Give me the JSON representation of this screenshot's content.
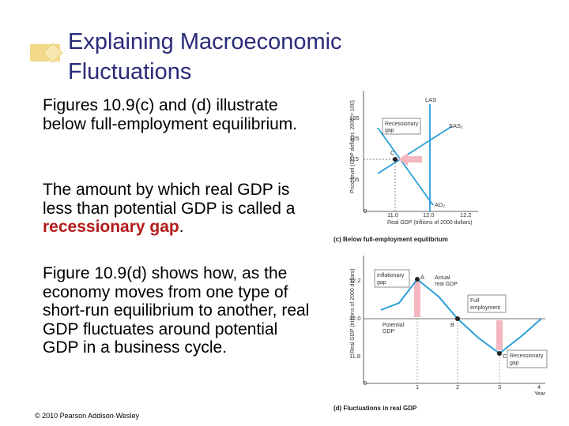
{
  "title": {
    "line1": "Explaining Macroeconomic",
    "line2": "Fluctuations"
  },
  "paragraphs": {
    "p1": "Figures 10.9(c) and (d) illustrate below full-employment equilibrium.",
    "p2_before": "The amount by which real GDP is less than potential GDP is called a ",
    "p2_highlight": "recessionary gap",
    "p2_after": ".",
    "p3": "Figure 10.9(d) shows how, as the economy moves from one type of short-run equilibrium to another, real GDP fluctuates around potential GDP in a business cycle."
  },
  "footer": "© 2010 Pearson Addison-Wesley",
  "figure_c": {
    "caption": "(c) Below full-employment equilibrium",
    "ylabel": "Price level (GDP deflator, 2000 = 100)",
    "xlabel": "Real GDP (trillions of 2000 dollars)",
    "yticks": [
      "135",
      "125",
      "115",
      "105"
    ],
    "xticks": [
      "11.0",
      "12.0",
      "12.2"
    ],
    "origin": "0",
    "curve_las": "LAS",
    "curve_sas": "SAS₂",
    "curve_ad": "AD₂",
    "gap_label_1": "Recessionary",
    "gap_label_2": "gap",
    "point": "C"
  },
  "figure_d": {
    "caption": "(d) Fluctuations in real GDP",
    "ylabel": "Real GDP (trillions of 2000 dollars)",
    "xlabel": "Year",
    "yticks": [
      "12.2",
      "12.0",
      "11.8"
    ],
    "xticks": [
      "1",
      "2",
      "3",
      "4"
    ],
    "origin": "0",
    "inflationary_1": "Inflationary",
    "inflationary_2": "gap",
    "actual_1": "Actual",
    "actual_2": "real GDP",
    "potential_1": "Potential",
    "potential_2": "GDP",
    "full_1": "Full",
    "full_2": "employment",
    "recess_1": "Recessionary",
    "recess_2": "gap",
    "point_a": "A",
    "point_b": "B",
    "point_c": "C"
  },
  "colors": {
    "title": "#2a2a7a",
    "highlight": "#b31b1b",
    "curve": "#2b9fd8",
    "gap_arrow": "#f4b6c0"
  }
}
